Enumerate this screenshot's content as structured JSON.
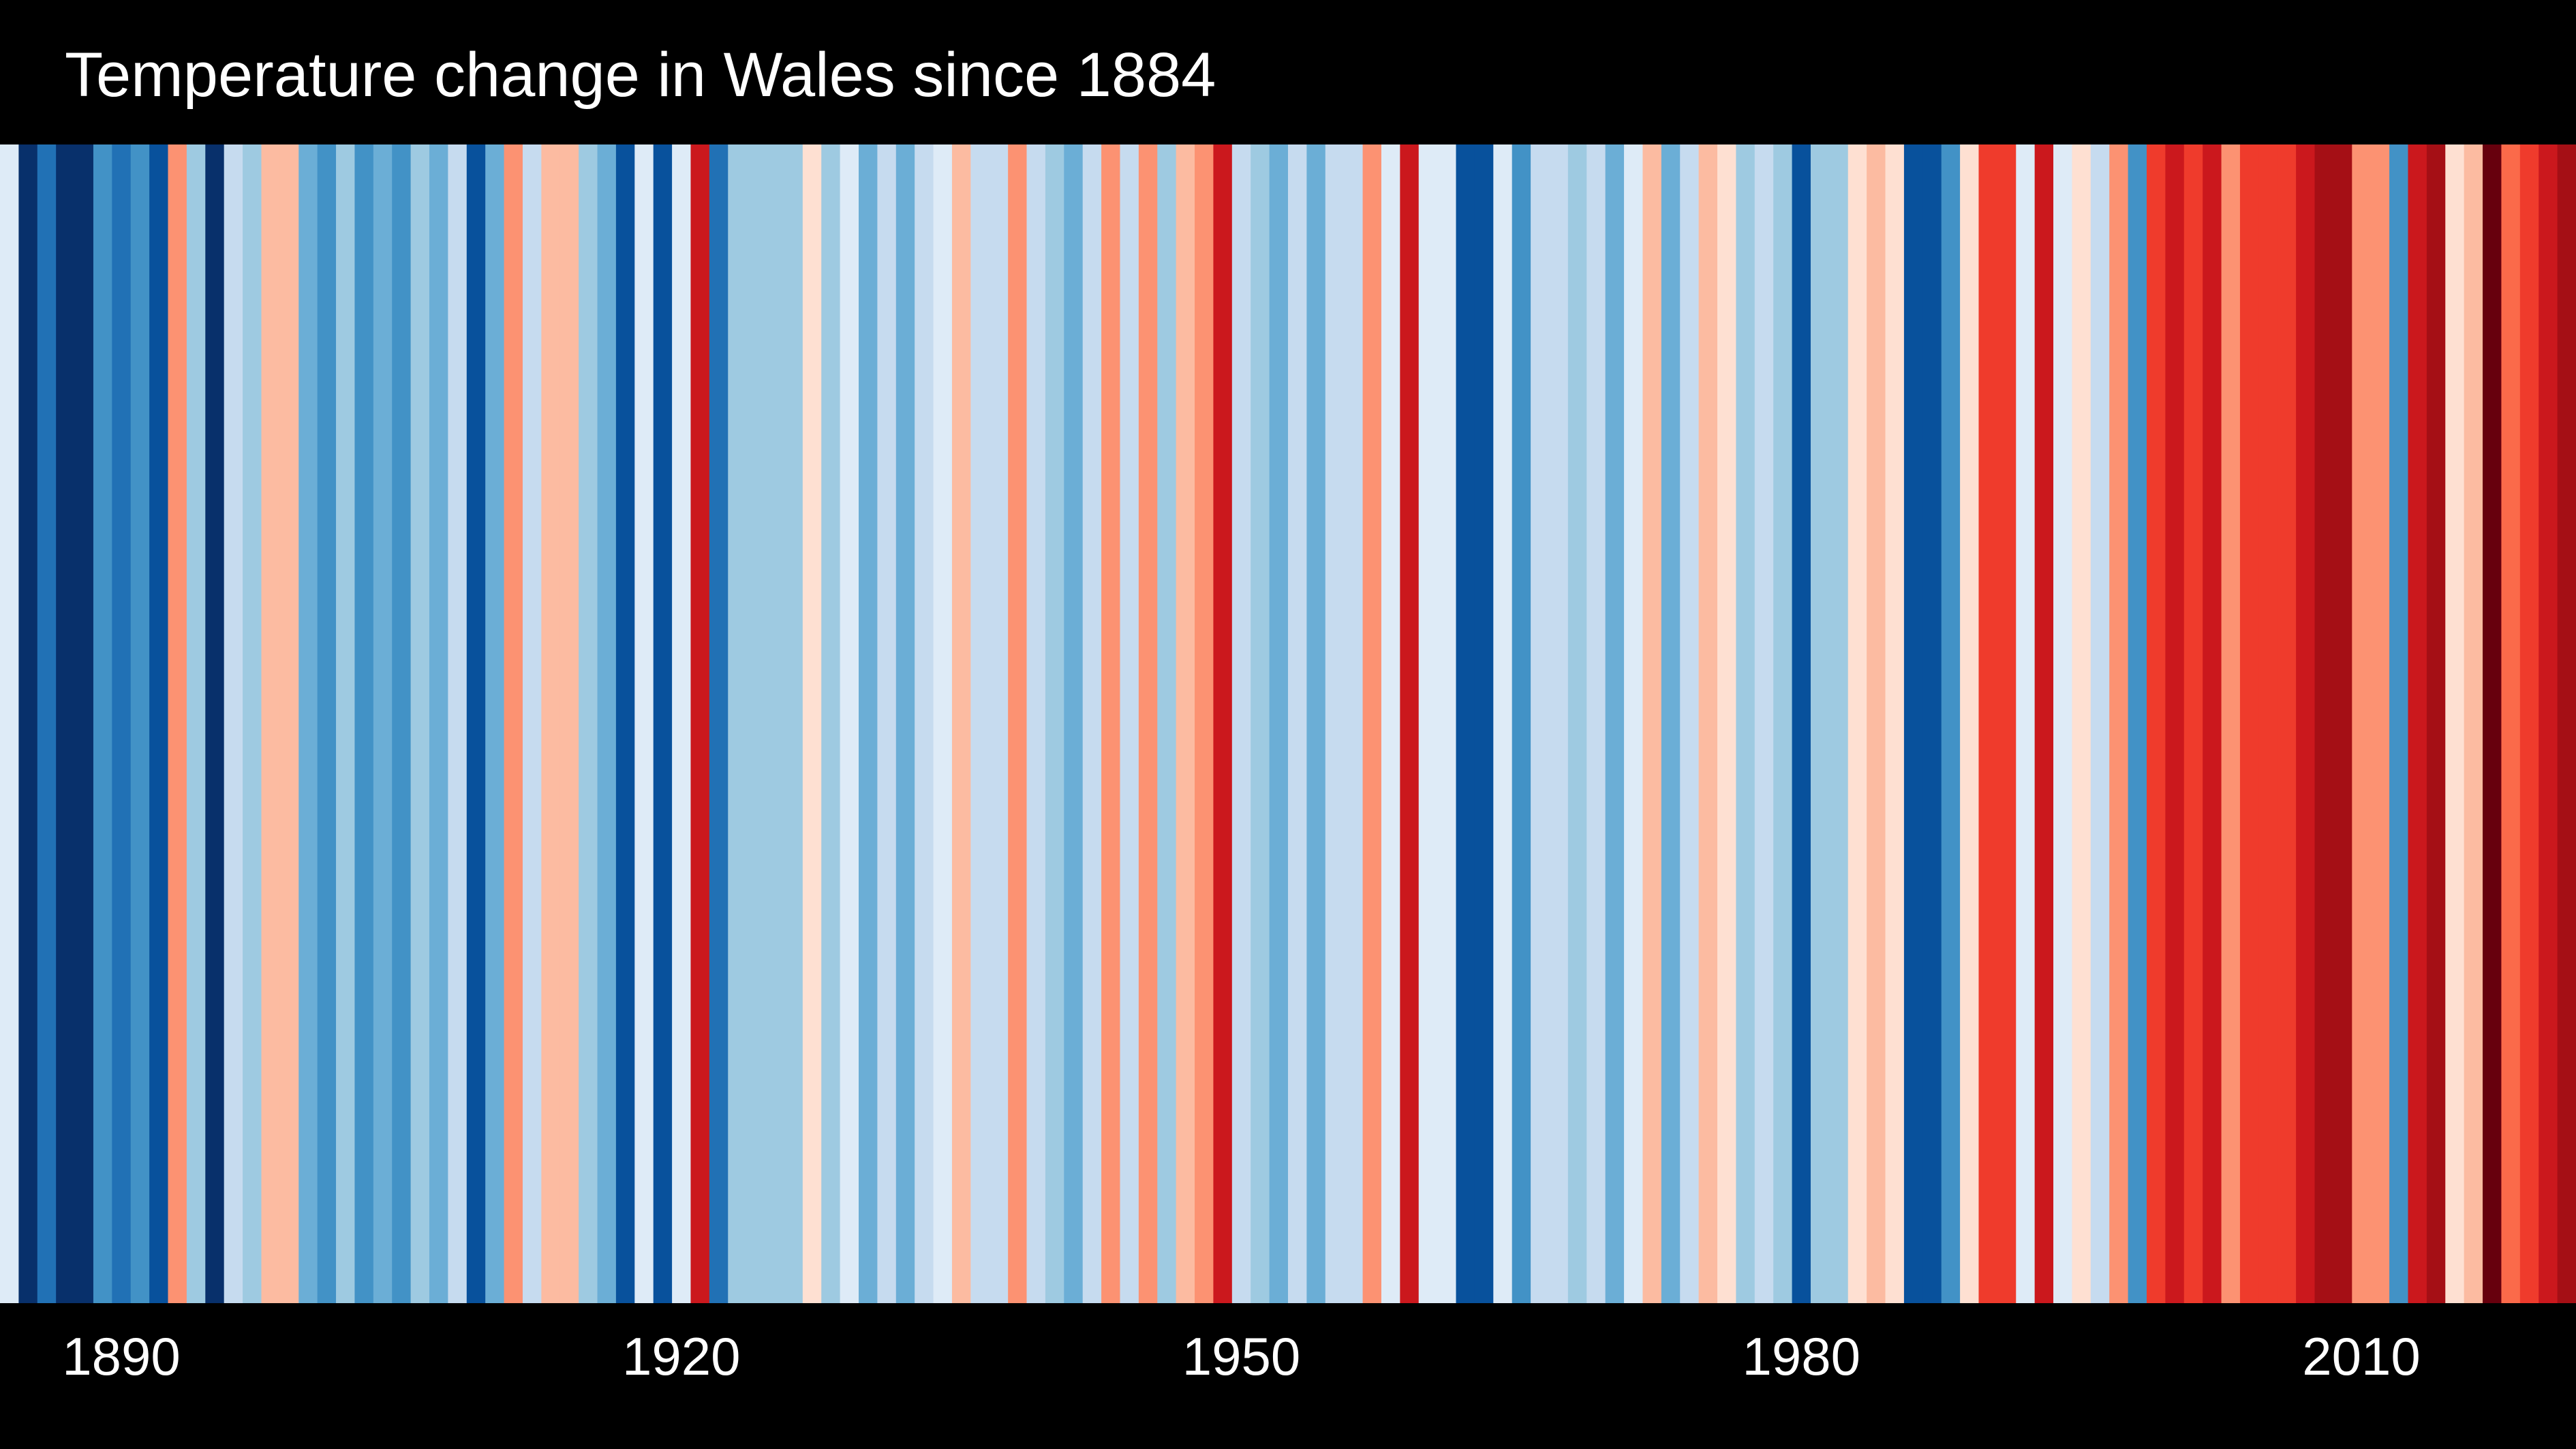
{
  "title": "Temperature change in Wales since 1884",
  "colors": {
    "background": "#000000",
    "text": "#ffffff"
  },
  "chart_data": {
    "type": "heatmap",
    "title": "Temperature change in Wales since 1884",
    "x_start": 1884,
    "x_end": 2021,
    "xticks": [
      1890,
      1920,
      1950,
      1980,
      2010
    ],
    "grid": false,
    "legend": "none",
    "stripe_colors": [
      "#deebf7",
      "#08306b",
      "#2171b5",
      "#08306b",
      "#08306b",
      "#4292c6",
      "#2171b5",
      "#4292c6",
      "#08519c",
      "#fc9272",
      "#9ecae1",
      "#08306b",
      "#c6dbef",
      "#9ecae1",
      "#fcbba1",
      "#fcbba1",
      "#6baed6",
      "#4292c6",
      "#9ecae1",
      "#4292c6",
      "#6baed6",
      "#4292c6",
      "#9ecae1",
      "#6baed6",
      "#c6dbef",
      "#08519c",
      "#6baed6",
      "#fc9272",
      "#c6dbef",
      "#fcbba1",
      "#fcbba1",
      "#9ecae1",
      "#6baed6",
      "#08519c",
      "#deebf7",
      "#08519c",
      "#deebf7",
      "#cb181d",
      "#2171b5",
      "#9ecae1",
      "#9ecae1",
      "#9ecae1",
      "#9ecae1",
      "#fee0d2",
      "#9ecae1",
      "#deebf7",
      "#6baed6",
      "#c6dbef",
      "#6baed6",
      "#c6dbef",
      "#deebf7",
      "#fcbba1",
      "#c6dbef",
      "#c6dbef",
      "#fc9272",
      "#c6dbef",
      "#9ecae1",
      "#6baed6",
      "#c6dbef",
      "#fc9272",
      "#c6dbef",
      "#fc9272",
      "#9ecae1",
      "#fcbba1",
      "#fc9272",
      "#cb181d",
      "#c6dbef",
      "#9ecae1",
      "#6baed6",
      "#c6dbef",
      "#6baed6",
      "#c6dbef",
      "#c6dbef",
      "#fc9272",
      "#deebf7",
      "#cb181d",
      "#deebf7",
      "#deebf7",
      "#08519c",
      "#08519c",
      "#deebf7",
      "#4292c6",
      "#c6dbef",
      "#c6dbef",
      "#9ecae1",
      "#c6dbef",
      "#6baed6",
      "#deebf7",
      "#fcbba1",
      "#6baed6",
      "#c6dbef",
      "#fcbba1",
      "#fee0d2",
      "#9ecae1",
      "#c6dbef",
      "#9ecae1",
      "#08519c",
      "#9ecae1",
      "#9ecae1",
      "#fee0d2",
      "#fcbba1",
      "#fee0d2",
      "#08519c",
      "#08519c",
      "#4292c6",
      "#fee0d2",
      "#ef3b2c",
      "#ef3b2c",
      "#deebf7",
      "#cb181d",
      "#deebf7",
      "#fee0d2",
      "#c6dbef",
      "#fc9272",
      "#4292c6",
      "#ef3b2c",
      "#cb181d",
      "#ef3b2c",
      "#cb181d",
      "#fc9272",
      "#ef3b2c",
      "#ef3b2c",
      "#ef3b2c",
      "#cb181d",
      "#a50f15",
      "#a50f15",
      "#fc9272",
      "#fc9272",
      "#4292c6",
      "#cb181d",
      "#a50f15",
      "#fee0d2",
      "#fcbba1",
      "#67000d",
      "#fb6a4a",
      "#ef3b2c",
      "#cb181d",
      "#a50f15"
    ]
  }
}
